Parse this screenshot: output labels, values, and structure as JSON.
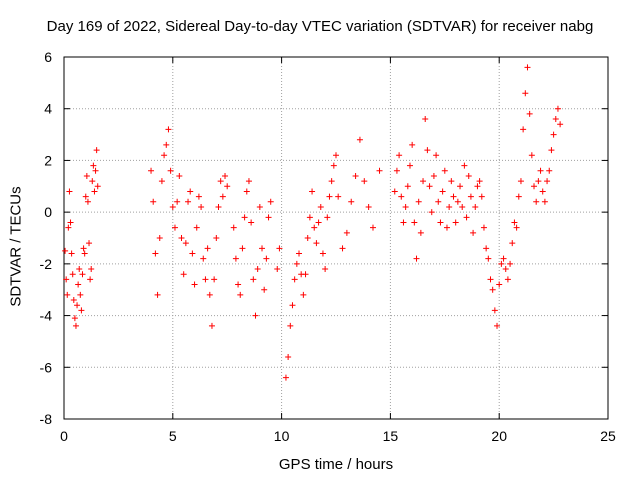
{
  "chart_data": {
    "type": "scatter",
    "title": "Day 169 of 2022, Sidereal Day-to-day VTEC variation (SDTVAR) for receiver nabg",
    "xlabel": "GPS time / hours",
    "ylabel": "SDTVAR / TECUs",
    "xlim": [
      0,
      25
    ],
    "ylim": [
      -8,
      6
    ],
    "xticks": [
      "0",
      "5",
      "10",
      "15",
      "20",
      "25"
    ],
    "yticks": [
      "-8",
      "-6",
      "-4",
      "-2",
      "0",
      "2",
      "4",
      "6"
    ],
    "grid": true,
    "marker": "+",
    "marker_color": "#ff0000",
    "series": [
      {
        "name": "SDTVAR",
        "x": [
          0.05,
          0.1,
          0.15,
          0.2,
          0.25,
          0.3,
          0.35,
          0.4,
          0.45,
          0.5,
          0.55,
          0.6,
          0.65,
          0.7,
          0.75,
          0.8,
          0.85,
          0.9,
          0.95,
          1.0,
          1.05,
          1.1,
          1.15,
          1.2,
          1.25,
          1.3,
          1.35,
          1.4,
          1.45,
          1.5,
          1.55,
          4.0,
          4.1,
          4.2,
          4.3,
          4.4,
          4.5,
          4.6,
          4.7,
          4.8,
          4.9,
          5.0,
          5.1,
          5.2,
          5.3,
          5.4,
          5.5,
          5.6,
          5.7,
          5.8,
          5.9,
          6.0,
          6.1,
          6.2,
          6.3,
          6.4,
          6.5,
          6.6,
          6.7,
          6.8,
          6.9,
          7.0,
          7.1,
          7.2,
          7.3,
          7.4,
          7.5,
          7.8,
          7.9,
          8.0,
          8.1,
          8.2,
          8.3,
          8.4,
          8.5,
          8.6,
          8.7,
          8.8,
          8.9,
          9.0,
          9.1,
          9.2,
          9.3,
          9.4,
          9.5,
          9.8,
          9.9,
          10.2,
          10.3,
          10.4,
          10.5,
          10.6,
          10.7,
          10.8,
          10.9,
          11.0,
          11.1,
          11.2,
          11.3,
          11.4,
          11.5,
          11.6,
          11.7,
          11.8,
          11.9,
          12.0,
          12.1,
          12.2,
          12.3,
          12.4,
          12.5,
          12.6,
          12.8,
          13.0,
          13.2,
          13.4,
          13.6,
          13.8,
          14.0,
          14.2,
          14.5,
          15.2,
          15.3,
          15.4,
          15.5,
          15.6,
          15.7,
          15.8,
          15.9,
          16.0,
          16.1,
          16.2,
          16.3,
          16.4,
          16.5,
          16.6,
          16.7,
          16.8,
          16.9,
          17.0,
          17.1,
          17.2,
          17.3,
          17.4,
          17.5,
          17.6,
          17.7,
          17.8,
          17.9,
          18.0,
          18.1,
          18.2,
          18.3,
          18.4,
          18.5,
          18.6,
          18.7,
          18.8,
          18.9,
          19.0,
          19.1,
          19.2,
          19.3,
          19.4,
          19.5,
          19.6,
          19.7,
          19.8,
          19.9,
          20.0,
          20.1,
          20.2,
          20.3,
          20.4,
          20.5,
          20.6,
          20.7,
          20.8,
          20.9,
          21.0,
          21.1,
          21.2,
          21.3,
          21.4,
          21.5,
          21.6,
          21.7,
          21.8,
          21.9,
          22.0,
          22.1,
          22.2,
          22.3,
          22.4,
          22.5,
          22.6,
          22.7,
          22.8
        ],
        "y": [
          -1.5,
          -2.6,
          -3.2,
          -0.6,
          0.8,
          -0.4,
          -1.6,
          -2.4,
          -3.4,
          -4.1,
          -4.4,
          -3.6,
          -2.8,
          -2.2,
          -3.2,
          -3.8,
          -2.4,
          -1.4,
          -1.6,
          0.6,
          1.4,
          0.4,
          -1.2,
          -2.6,
          -2.2,
          1.2,
          1.8,
          0.8,
          1.6,
          2.4,
          1.0,
          1.6,
          0.4,
          -1.6,
          -3.2,
          -1.0,
          1.2,
          2.2,
          2.6,
          3.2,
          1.6,
          0.2,
          -0.6,
          0.4,
          1.4,
          -1.0,
          -2.4,
          -1.2,
          0.4,
          0.8,
          -1.6,
          -2.8,
          -0.6,
          0.6,
          0.2,
          -1.8,
          -2.6,
          -1.4,
          -3.2,
          -4.4,
          -2.6,
          -1.0,
          0.2,
          1.2,
          0.6,
          1.4,
          1.0,
          -0.6,
          -1.8,
          -2.8,
          -3.2,
          -1.4,
          -0.2,
          0.8,
          1.2,
          -0.4,
          -2.6,
          -4.0,
          -2.2,
          0.2,
          -1.4,
          -3.0,
          -1.8,
          -0.2,
          0.4,
          -2.2,
          -1.4,
          -6.4,
          -5.6,
          -4.4,
          -3.6,
          -2.6,
          -2.0,
          -1.6,
          -2.4,
          -3.2,
          -2.4,
          -1.0,
          -0.2,
          0.8,
          -0.6,
          -1.2,
          -0.4,
          0.2,
          -1.6,
          -2.2,
          -0.2,
          0.6,
          1.2,
          1.8,
          2.2,
          0.6,
          -1.4,
          -0.8,
          0.4,
          1.4,
          2.8,
          1.2,
          0.2,
          -0.6,
          1.6,
          0.8,
          1.6,
          2.2,
          0.6,
          -0.4,
          0.2,
          1.0,
          1.8,
          2.6,
          -0.4,
          -1.8,
          0.4,
          -0.8,
          1.2,
          3.6,
          2.4,
          1.0,
          0.0,
          1.4,
          2.2,
          0.4,
          -0.4,
          0.8,
          1.6,
          -0.6,
          0.2,
          1.2,
          0.6,
          -0.4,
          0.4,
          1.0,
          0.2,
          1.8,
          -0.2,
          1.4,
          0.6,
          -0.8,
          0.2,
          1.0,
          1.2,
          0.6,
          -0.6,
          -1.4,
          -1.8,
          -2.6,
          -3.0,
          -3.8,
          -4.4,
          -2.8,
          -2.0,
          -1.8,
          -2.2,
          -2.6,
          -2.0,
          -1.2,
          -0.4,
          -0.6,
          0.6,
          1.2,
          3.2,
          4.6,
          5.6,
          3.8,
          2.2,
          1.0,
          0.4,
          1.2,
          1.6,
          0.8,
          0.4,
          1.2,
          1.6,
          2.4,
          3.0,
          3.6,
          4.0,
          3.4
        ]
      }
    ]
  }
}
